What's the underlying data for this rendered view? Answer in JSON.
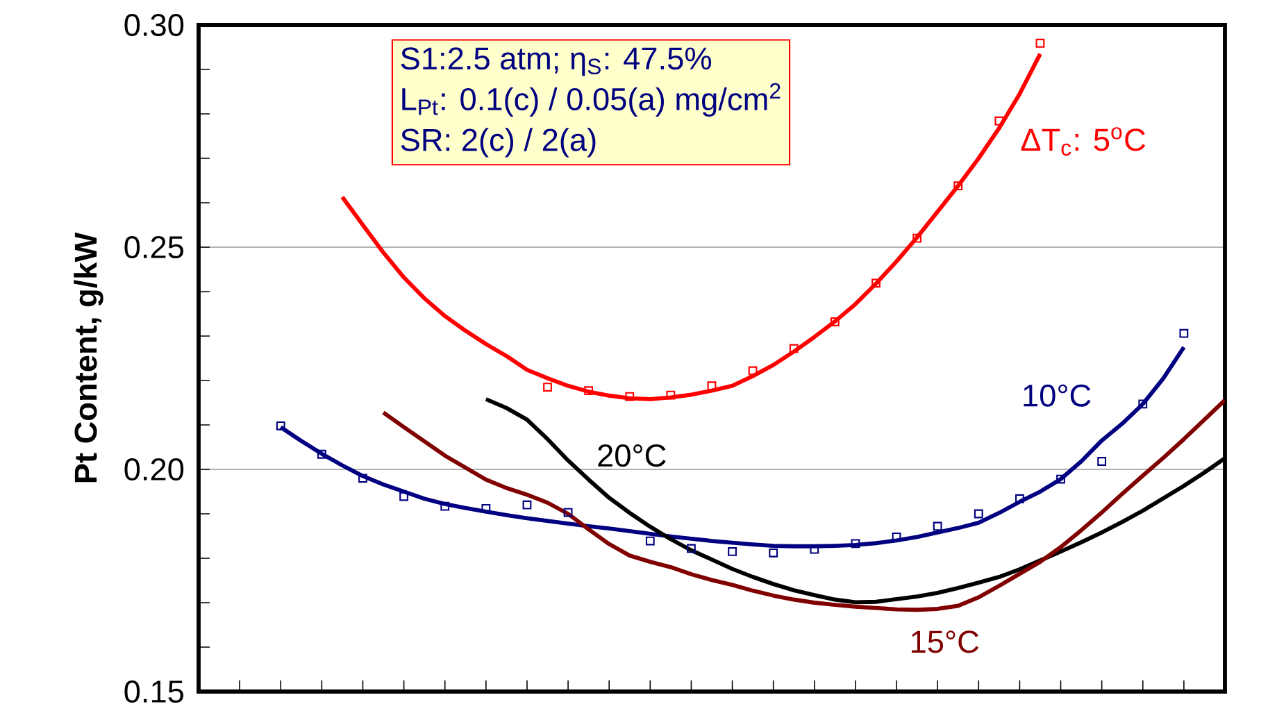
{
  "chart_data": {
    "type": "line",
    "ylabel": "Pt Content, g/kW",
    "annotations": [
      "S1:2.5 atm; η$_{S}$: 47.5%",
      "L$_{Pt}$: 0.1(c) / 0.05(a) mg/cm$^{2}$",
      "SR: 2(c) / 2(a)"
    ],
    "categories": [
      null,
      null,
      null,
      null,
      null,
      null,
      null,
      null,
      null,
      null,
      null,
      null,
      null,
      null,
      null,
      null,
      null,
      null,
      null,
      null,
      null,
      null,
      null,
      null,
      null,
      null,
      null,
      null,
      null,
      null,
      null,
      null,
      null,
      null,
      null,
      null,
      null,
      null,
      null,
      null,
      null,
      null,
      null,
      null,
      null,
      null,
      null,
      null,
      null,
      null,
      null
    ],
    "series": [
      {
        "type": "scatter",
        "marker": "square",
        "color": "#ff0000",
        "values": [
          null,
          null,
          null,
          null,
          null,
          null,
          null,
          null,
          null,
          null,
          null,
          null,
          null,
          null,
          null,
          null,
          null,
          0.2185,
          null,
          0.2177,
          null,
          0.2164,
          null,
          0.2167,
          null,
          0.2188,
          null,
          0.2222,
          null,
          0.2272,
          null,
          0.2332,
          null,
          0.2419,
          null,
          0.252,
          null,
          0.2638,
          null,
          0.2784,
          null,
          0.2959,
          null,
          null,
          null,
          null,
          null,
          null,
          null,
          null,
          null
        ]
      },
      {
        "name": "ΔT$_{c}$: 5$^{o}$C",
        "color": "#ff0000",
        "values": [
          null,
          null,
          null,
          null,
          null,
          null,
          null,
          0.2613,
          0.255,
          0.2488,
          0.2432,
          0.2385,
          0.2345,
          0.2312,
          0.2282,
          0.2255,
          0.2224,
          0.2205,
          0.2188,
          0.2175,
          0.2166,
          0.216,
          0.2158,
          0.2162,
          0.2168,
          0.2177,
          0.2188,
          0.221,
          0.2235,
          0.2265,
          0.2298,
          0.2333,
          0.2372,
          0.2418,
          0.2468,
          0.2522,
          0.258,
          0.2638,
          0.27,
          0.2768,
          0.2845,
          0.2935,
          null,
          null,
          null,
          null,
          null,
          null,
          null,
          null,
          null
        ]
      },
      {
        "type": "scatter",
        "marker": "square",
        "color": "#000080",
        "values": [
          null,
          null,
          null,
          null,
          0.2098,
          null,
          0.2034,
          null,
          0.198,
          null,
          0.1939,
          null,
          0.1917,
          null,
          0.1912,
          null,
          0.192,
          null,
          0.1903,
          null,
          null,
          null,
          0.1839,
          null,
          0.1822,
          null,
          0.1815,
          null,
          0.1812,
          null,
          0.182,
          null,
          0.1833,
          null,
          0.1848,
          null,
          0.1872,
          null,
          0.19,
          null,
          0.1934,
          null,
          0.1978,
          null,
          0.2018,
          null,
          0.2147,
          null,
          0.2306,
          null,
          null
        ]
      },
      {
        "name": "10°C",
        "color": "#000080",
        "values": [
          null,
          null,
          null,
          null,
          0.2095,
          0.2064,
          0.2035,
          0.2009,
          0.1985,
          0.1966,
          0.195,
          0.1934,
          0.1922,
          0.1913,
          0.1905,
          0.1897,
          0.189,
          0.1884,
          0.1878,
          0.1872,
          0.1867,
          0.1861,
          0.1855,
          0.1849,
          0.1844,
          0.1839,
          0.1835,
          0.1831,
          0.1828,
          0.1827,
          0.1827,
          0.1828,
          0.183,
          0.1834,
          0.184,
          0.1848,
          0.1858,
          0.1868,
          0.188,
          0.1902,
          0.1927,
          0.195,
          0.1978,
          0.2018,
          0.2065,
          0.2103,
          0.2147,
          0.2205,
          0.2275,
          null,
          null
        ]
      },
      {
        "name": "20°C",
        "color": "#000000",
        "values": [
          null,
          null,
          null,
          null,
          null,
          null,
          null,
          null,
          null,
          null,
          null,
          null,
          null,
          null,
          0.2158,
          0.2138,
          0.2112,
          0.2068,
          0.202,
          0.1977,
          0.1936,
          0.1902,
          0.1871,
          0.1843,
          0.1818,
          0.1797,
          0.1776,
          0.1758,
          0.1742,
          0.1728,
          0.1717,
          0.1707,
          0.1701,
          0.1702,
          0.1708,
          0.1714,
          0.1722,
          0.1733,
          0.1745,
          0.1758,
          0.1775,
          0.1795,
          0.1815,
          0.1836,
          0.1858,
          0.1882,
          0.1907,
          0.1935,
          0.1963,
          0.1993,
          0.2025
        ]
      },
      {
        "name": "15°C",
        "color": "#800000",
        "values": [
          null,
          null,
          null,
          null,
          null,
          null,
          null,
          null,
          null,
          0.2128,
          0.2095,
          0.2063,
          0.2031,
          0.2004,
          0.1977,
          0.1958,
          0.1943,
          0.1925,
          0.19,
          0.1865,
          0.1832,
          0.1806,
          0.1792,
          0.178,
          0.1764,
          0.1751,
          0.174,
          0.1727,
          0.1716,
          0.1707,
          0.17,
          0.1695,
          0.1691,
          0.1688,
          0.1685,
          0.1684,
          0.1686,
          0.1693,
          0.1712,
          0.1738,
          0.1765,
          0.1792,
          0.1825,
          0.1863,
          0.1903,
          0.1945,
          0.1986,
          0.2026,
          0.2068,
          0.2112,
          0.2156
        ]
      }
    ],
    "ylim": [
      0.15,
      0.3
    ],
    "yticks": [
      {
        "value": 0.15,
        "label": "0.15"
      },
      {
        "value": 0.2,
        "label": "0.20"
      },
      {
        "value": 0.25,
        "label": "0.25"
      },
      {
        "value": 0.3,
        "label": "0.30"
      }
    ],
    "tick_labels": "y",
    "grid": "y"
  }
}
